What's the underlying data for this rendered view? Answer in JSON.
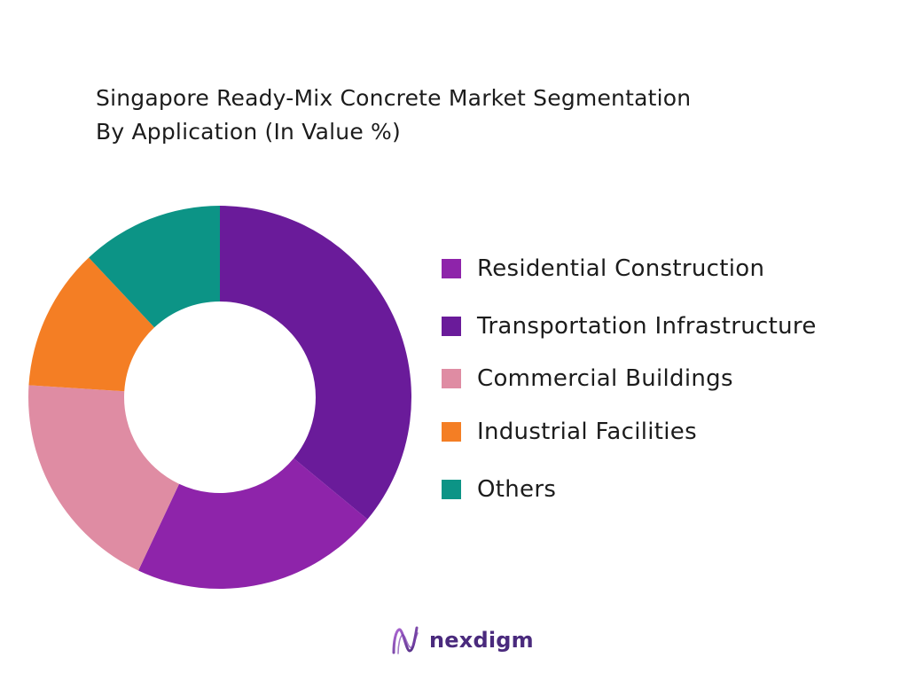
{
  "chart_data": {
    "type": "pie",
    "title_line1": "Singapore Ready-Mix Concrete Market  Segmentation",
    "title_line2": "By Application (In Value %)",
    "donut": true,
    "start_angle_deg": 0,
    "legend_position": "right",
    "slices": [
      {
        "label": "Transportation Infrastructure",
        "value": 36,
        "color": "#6a1b9a"
      },
      {
        "label": "Residential Construction",
        "value": 21,
        "color": "#8e24aa"
      },
      {
        "label": "Commercial Buildings",
        "value": 19,
        "color": "#df8ca3"
      },
      {
        "label": "Industrial Facilities",
        "value": 12,
        "color": "#f47e24"
      },
      {
        "label": "Others",
        "value": 12,
        "color": "#0c9486"
      }
    ],
    "legend": [
      {
        "label": "Residential Construction",
        "color": "#8e24aa"
      },
      {
        "label": "Transportation Infrastructure",
        "color": "#6a1b9a"
      },
      {
        "label": "Commercial Buildings",
        "color": "#df8ca3"
      },
      {
        "label": "Industrial Facilities",
        "color": "#f47e24"
      },
      {
        "label": "Others",
        "color": "#0c9486"
      }
    ]
  },
  "brand": {
    "name": "nexdigm",
    "icon": "nexdigm-logo-icon",
    "color": "#4a2a7d"
  }
}
